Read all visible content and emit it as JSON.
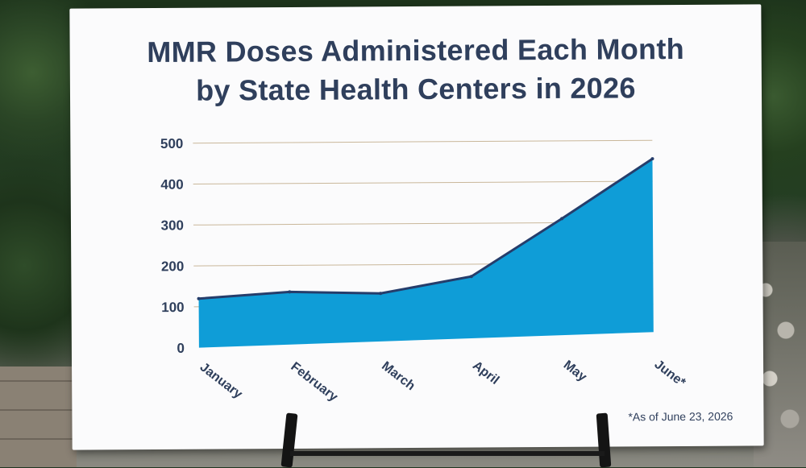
{
  "board": {
    "title_line1": "MMR Doses Administered Each Month",
    "title_line2": "by State Health Centers in 2026",
    "footnote": "*As of June 23, 2026"
  },
  "colors": {
    "area_fill": "#0f9dd7",
    "area_line": "#253d6b",
    "text": "#2f3f5c",
    "gridline": "#c9b79a"
  },
  "chart_data": {
    "type": "area",
    "title": "MMR Doses Administered Each Month by State Health Centers in 2026",
    "categories": [
      "January",
      "February",
      "March",
      "April",
      "May",
      "June*"
    ],
    "series": [
      {
        "values": [
          120,
          135,
          130,
          170,
          310,
          455
        ]
      }
    ],
    "yticks": [
      "500",
      "400",
      "300",
      "200",
      "100",
      "0"
    ],
    "ylim": [
      0,
      500
    ],
    "grid": true,
    "xlabel": "",
    "ylabel": ""
  }
}
